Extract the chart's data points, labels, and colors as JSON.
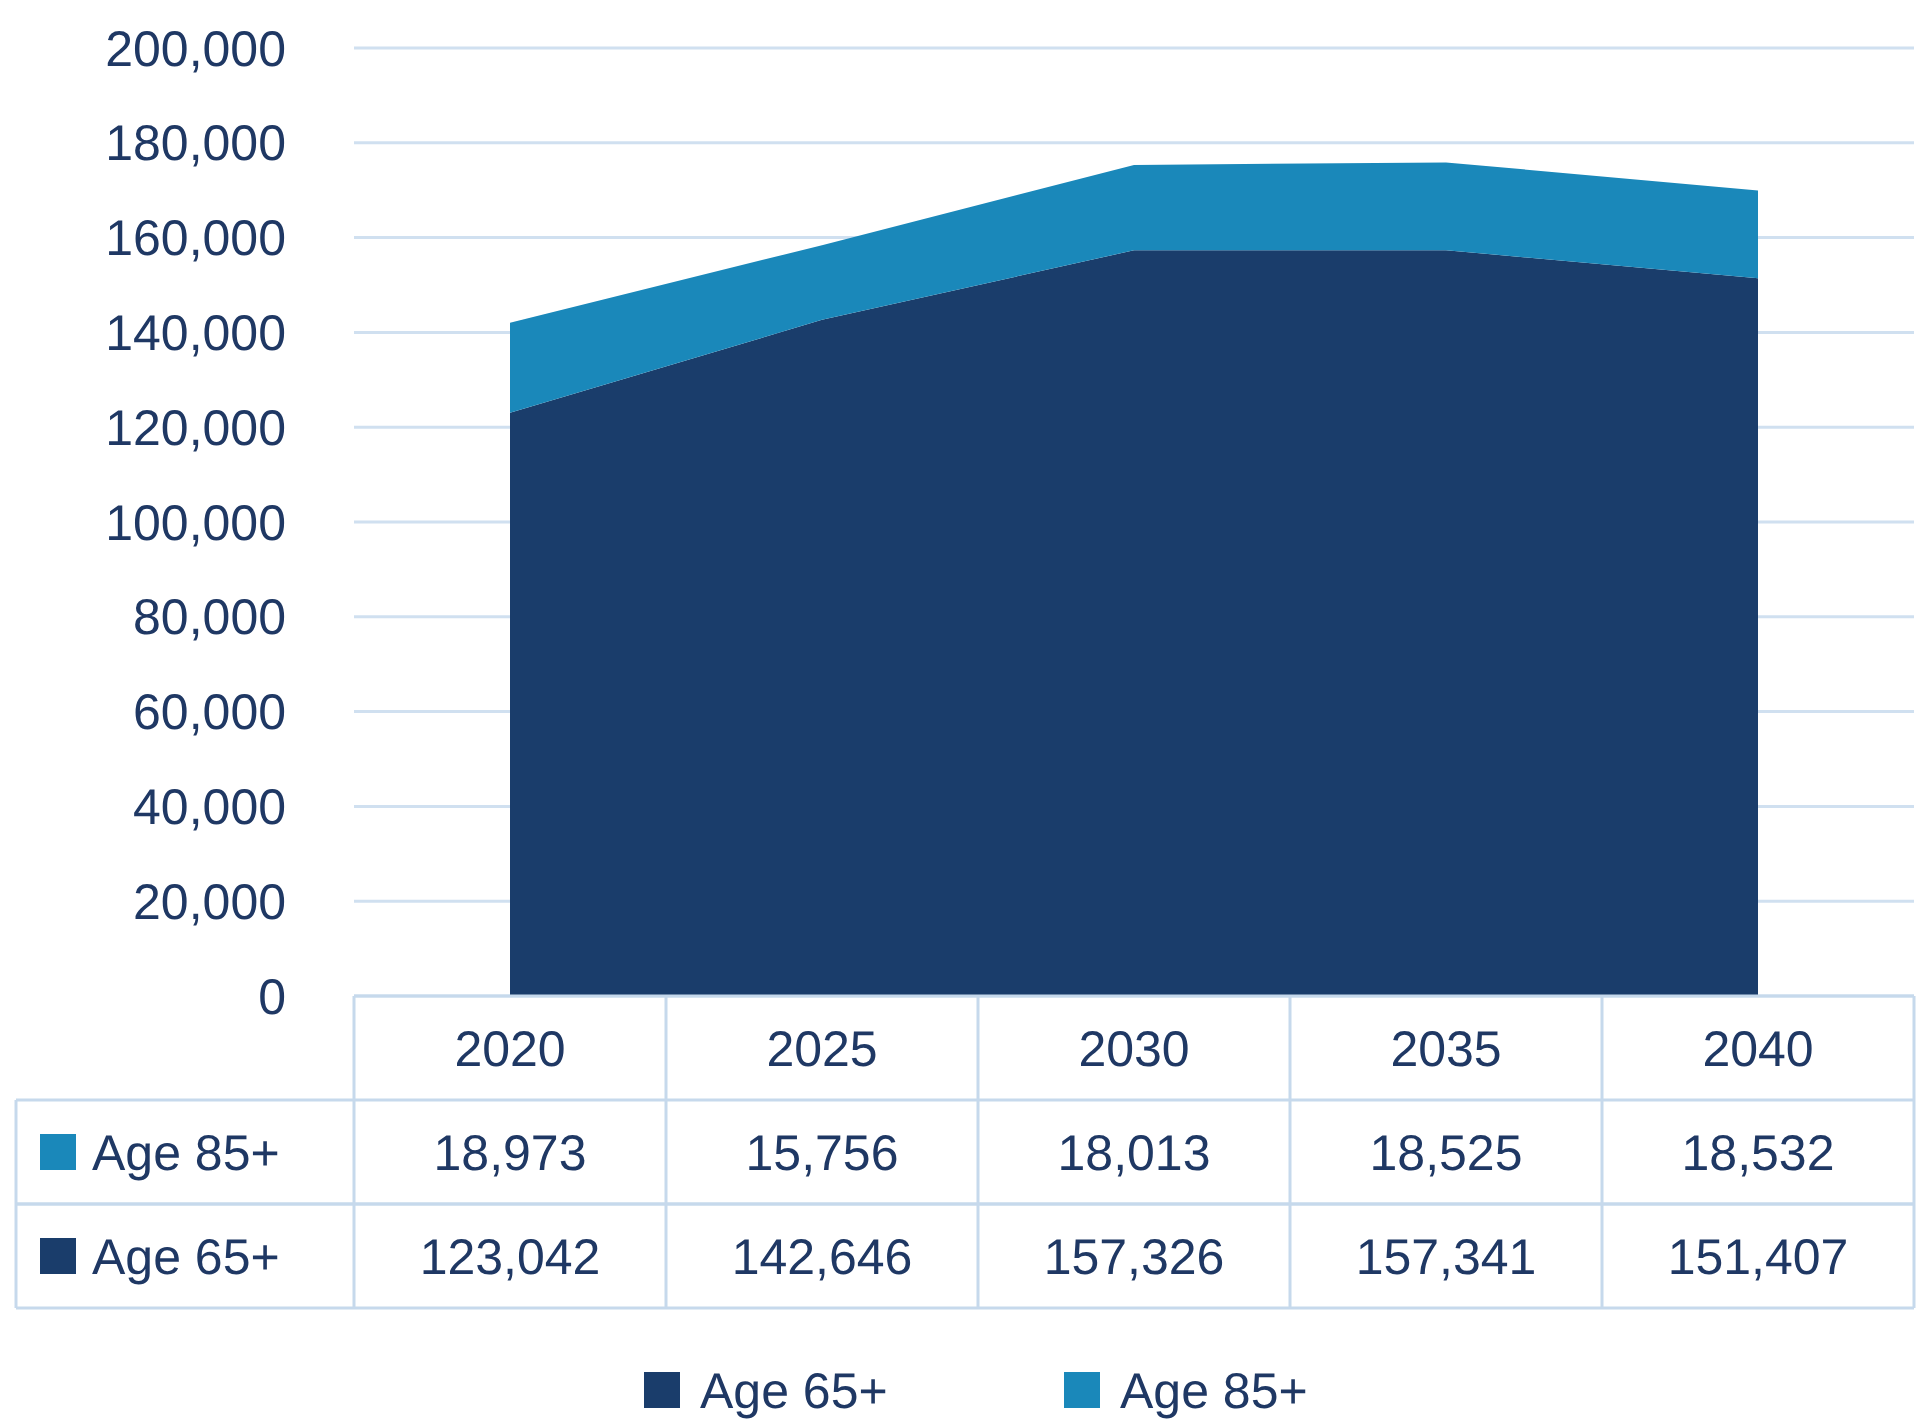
{
  "chart_data": {
    "type": "area",
    "stacked": true,
    "categories": [
      "2020",
      "2025",
      "2030",
      "2035",
      "2040"
    ],
    "series": [
      {
        "name": "Age 65+",
        "color": "#1a3d6b",
        "values": [
          123042,
          142646,
          157326,
          157341,
          151407
        ],
        "value_labels": [
          "123,042",
          "142,646",
          "157,326",
          "157,341",
          "151,407"
        ]
      },
      {
        "name": "Age 85+",
        "color": "#1a88ba",
        "values": [
          18973,
          15756,
          18013,
          18525,
          18532
        ],
        "value_labels": [
          "18,973",
          "15,756",
          "18,013",
          "18,525",
          "18,532"
        ]
      }
    ],
    "ylim": [
      0,
      200000
    ],
    "yticks": [
      {
        "value": 0,
        "label": "0"
      },
      {
        "value": 20000,
        "label": "20,000"
      },
      {
        "value": 40000,
        "label": "40,000"
      },
      {
        "value": 60000,
        "label": "60,000"
      },
      {
        "value": 80000,
        "label": "80,000"
      },
      {
        "value": 100000,
        "label": "100,000"
      },
      {
        "value": 120000,
        "label": "120,000"
      },
      {
        "value": 140000,
        "label": "140,000"
      },
      {
        "value": 160000,
        "label": "160,000"
      },
      {
        "value": 180000,
        "label": "180,000"
      },
      {
        "value": 200000,
        "label": "200,000"
      }
    ],
    "grid": "y",
    "legend": "bottom"
  }
}
